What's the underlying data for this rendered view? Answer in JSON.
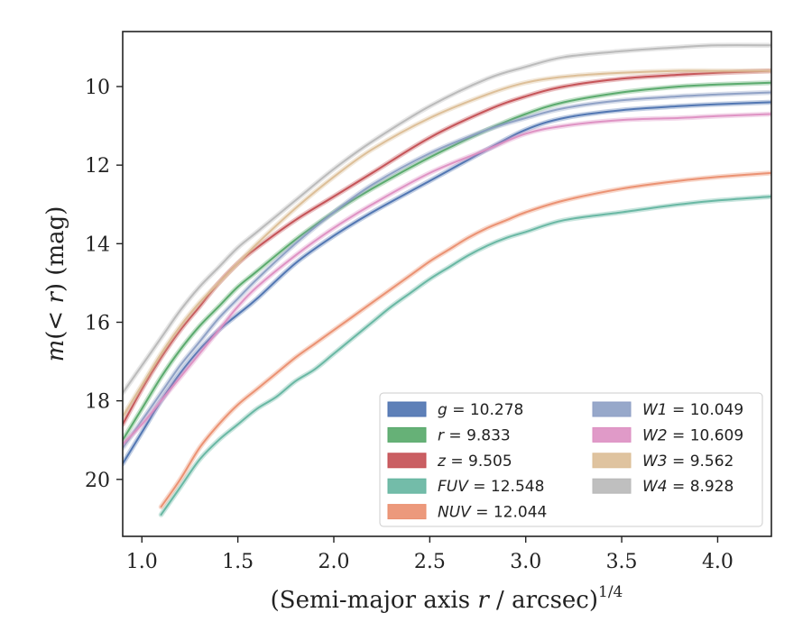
{
  "chart_data": {
    "type": "line",
    "title": "",
    "xlabel": "(Semi-major axis r / arcsec)",
    "xlabel_parts": {
      "prefix": "(Semi-major axis ",
      "var": "r",
      "suffix": " / arcsec)",
      "exponent": "1/4"
    },
    "ylabel_parts": {
      "m": "m",
      "inner": "(< ",
      "r": "r",
      "close": ")",
      "unit": " (mag)"
    },
    "xlim": [
      0.9,
      4.28
    ],
    "ylim": [
      21.45,
      8.6
    ],
    "y_inverted": true,
    "xticks": [
      "1.0",
      "1.5",
      "2.0",
      "2.5",
      "3.0",
      "3.5",
      "4.0"
    ],
    "yticks": [
      "10",
      "12",
      "14",
      "16",
      "18",
      "20"
    ],
    "grid": false,
    "legend_position": "lower-right",
    "series": [
      {
        "name_var": "g",
        "name_val": "10.278",
        "color": "#4c72b0",
        "x": [
          0.9,
          1.0,
          1.1,
          1.2,
          1.3,
          1.4,
          1.5,
          1.6,
          1.8,
          2.0,
          2.2,
          2.5,
          2.8,
          3.0,
          3.2,
          3.5,
          3.8,
          4.0,
          4.28
        ],
        "y": [
          19.6,
          18.8,
          18.0,
          17.3,
          16.7,
          16.2,
          15.8,
          15.4,
          14.5,
          13.8,
          13.2,
          12.4,
          11.6,
          11.1,
          10.8,
          10.6,
          10.5,
          10.45,
          10.4
        ]
      },
      {
        "name_var": "r",
        "name_val": "9.833",
        "color": "#55a868",
        "x": [
          0.9,
          1.0,
          1.1,
          1.2,
          1.3,
          1.4,
          1.5,
          1.6,
          1.8,
          2.0,
          2.2,
          2.5,
          2.8,
          3.0,
          3.2,
          3.5,
          3.8,
          4.0,
          4.28
        ],
        "y": [
          19.0,
          18.2,
          17.4,
          16.7,
          16.1,
          15.6,
          15.1,
          14.7,
          13.9,
          13.2,
          12.6,
          11.8,
          11.1,
          10.7,
          10.4,
          10.15,
          10.0,
          9.95,
          9.9
        ]
      },
      {
        "name_var": "z",
        "name_val": "9.505",
        "color": "#c44e52",
        "x": [
          0.9,
          1.0,
          1.1,
          1.2,
          1.3,
          1.4,
          1.5,
          1.6,
          1.8,
          2.0,
          2.2,
          2.5,
          2.8,
          3.0,
          3.2,
          3.5,
          3.8,
          4.0,
          4.28
        ],
        "y": [
          18.6,
          17.7,
          16.9,
          16.2,
          15.6,
          15.0,
          14.5,
          14.1,
          13.4,
          12.8,
          12.2,
          11.3,
          10.6,
          10.25,
          10.0,
          9.8,
          9.7,
          9.65,
          9.6
        ]
      },
      {
        "name_var": "FUV",
        "name_val": "12.548",
        "color": "#64b5a0",
        "x": [
          1.1,
          1.2,
          1.3,
          1.4,
          1.5,
          1.6,
          1.7,
          1.8,
          1.9,
          2.0,
          2.1,
          2.2,
          2.3,
          2.4,
          2.5,
          2.6,
          2.7,
          2.8,
          2.9,
          3.0,
          3.2,
          3.5,
          3.8,
          4.0,
          4.28
        ],
        "y": [
          20.9,
          20.2,
          19.5,
          19.0,
          18.6,
          18.2,
          17.9,
          17.5,
          17.2,
          16.8,
          16.4,
          16.0,
          15.6,
          15.25,
          14.9,
          14.6,
          14.3,
          14.05,
          13.85,
          13.7,
          13.4,
          13.2,
          13.0,
          12.9,
          12.8
        ]
      },
      {
        "name_var": "NUV",
        "name_val": "12.044",
        "color": "#ea8e6e",
        "x": [
          1.1,
          1.2,
          1.3,
          1.4,
          1.5,
          1.6,
          1.7,
          1.8,
          1.9,
          2.0,
          2.1,
          2.2,
          2.3,
          2.4,
          2.5,
          2.6,
          2.7,
          2.8,
          2.9,
          3.0,
          3.2,
          3.5,
          3.8,
          4.0,
          4.28
        ],
        "y": [
          20.7,
          20.0,
          19.2,
          18.6,
          18.1,
          17.7,
          17.3,
          16.9,
          16.55,
          16.2,
          15.85,
          15.5,
          15.15,
          14.8,
          14.45,
          14.15,
          13.85,
          13.6,
          13.4,
          13.2,
          12.9,
          12.6,
          12.4,
          12.3,
          12.2
        ]
      },
      {
        "name_var": "W1",
        "name_val": "10.049",
        "color": "#8c9ec4",
        "x": [
          0.9,
          1.0,
          1.1,
          1.2,
          1.3,
          1.4,
          1.5,
          1.6,
          1.8,
          2.0,
          2.2,
          2.5,
          2.8,
          3.0,
          3.2,
          3.5,
          3.8,
          4.0,
          4.28
        ],
        "y": [
          19.2,
          18.5,
          17.8,
          17.1,
          16.5,
          15.9,
          15.4,
          14.9,
          14.0,
          13.2,
          12.5,
          11.7,
          11.1,
          10.8,
          10.55,
          10.35,
          10.25,
          10.2,
          10.15
        ]
      },
      {
        "name_var": "W2",
        "name_val": "10.609",
        "color": "#dd8fc2",
        "x": [
          0.9,
          1.0,
          1.1,
          1.2,
          1.3,
          1.4,
          1.5,
          1.6,
          1.8,
          2.0,
          2.2,
          2.5,
          2.8,
          3.0,
          3.2,
          3.5,
          3.8,
          4.0,
          4.28
        ],
        "y": [
          19.1,
          18.6,
          18.0,
          17.4,
          16.8,
          16.2,
          15.6,
          15.1,
          14.3,
          13.6,
          13.0,
          12.2,
          11.6,
          11.2,
          11.0,
          10.85,
          10.8,
          10.75,
          10.7
        ]
      },
      {
        "name_var": "W3",
        "name_val": "9.562",
        "color": "#dbbd95",
        "x": [
          0.9,
          1.0,
          1.1,
          1.2,
          1.3,
          1.4,
          1.5,
          1.6,
          1.8,
          2.0,
          2.2,
          2.5,
          2.8,
          3.0,
          3.2,
          3.5,
          3.8,
          4.0,
          4.28
        ],
        "y": [
          18.4,
          17.6,
          16.8,
          16.1,
          15.5,
          15.0,
          14.5,
          14.0,
          13.1,
          12.3,
          11.6,
          10.8,
          10.2,
          9.9,
          9.75,
          9.65,
          9.6,
          9.6,
          9.6
        ]
      },
      {
        "name_var": "W4",
        "name_val": "8.928",
        "color": "#b8b8b8",
        "x": [
          0.9,
          1.0,
          1.1,
          1.2,
          1.3,
          1.4,
          1.5,
          1.6,
          1.8,
          2.0,
          2.2,
          2.5,
          2.8,
          3.0,
          3.2,
          3.5,
          3.8,
          4.0,
          4.28
        ],
        "y": [
          17.8,
          17.1,
          16.4,
          15.7,
          15.1,
          14.6,
          14.1,
          13.7,
          12.9,
          12.1,
          11.4,
          10.5,
          9.8,
          9.5,
          9.25,
          9.1,
          9.0,
          8.95,
          8.95
        ]
      }
    ]
  }
}
